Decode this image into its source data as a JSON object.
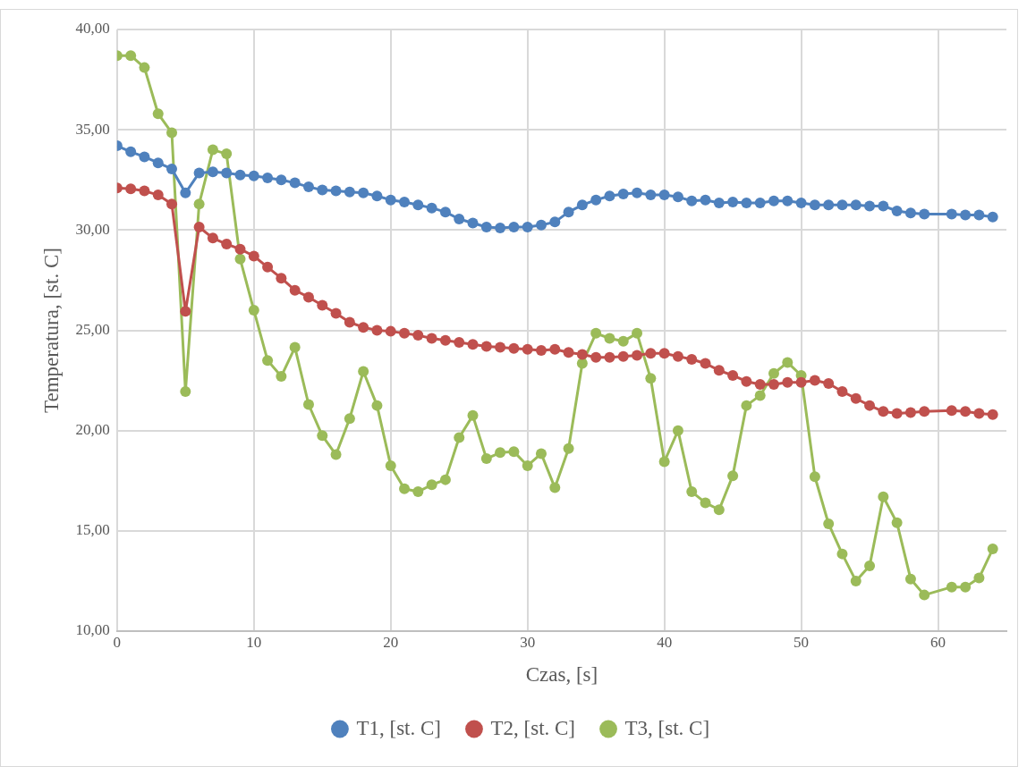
{
  "chart_data": {
    "type": "line",
    "xlabel": "Czas, [s]",
    "ylabel": "Temperatura, [st. C]",
    "x": [
      0,
      1,
      2,
      3,
      4,
      5,
      6,
      7,
      8,
      9,
      10,
      11,
      12,
      13,
      14,
      15,
      16,
      17,
      18,
      19,
      20,
      21,
      22,
      23,
      24,
      25,
      26,
      27,
      28,
      29,
      30,
      31,
      32,
      33,
      34,
      35,
      36,
      37,
      38,
      39,
      40,
      41,
      42,
      43,
      44,
      45,
      46,
      47,
      48,
      49,
      50,
      51,
      52,
      53,
      54,
      55,
      56,
      57,
      58,
      59,
      61,
      62,
      63,
      64
    ],
    "series": [
      {
        "name": "T1, [st. C]",
        "color": "#4f81bd",
        "values": [
          34.2,
          33.9,
          33.65,
          33.35,
          33.05,
          31.85,
          32.85,
          32.9,
          32.85,
          32.75,
          32.7,
          32.6,
          32.5,
          32.35,
          32.15,
          32.0,
          31.95,
          31.9,
          31.85,
          31.7,
          31.5,
          31.4,
          31.25,
          31.1,
          30.9,
          30.55,
          30.35,
          30.15,
          30.1,
          30.15,
          30.15,
          30.25,
          30.4,
          30.9,
          31.25,
          31.5,
          31.7,
          31.8,
          31.85,
          31.75,
          31.75,
          31.65,
          31.45,
          31.5,
          31.35,
          31.4,
          31.35,
          31.35,
          31.45,
          31.45,
          31.35,
          31.25,
          31.25,
          31.25,
          31.25,
          31.2,
          31.2,
          30.95,
          30.85,
          30.8,
          30.8,
          30.75,
          30.75,
          30.65
        ]
      },
      {
        "name": "T2, [st. C]",
        "color": "#c0504d",
        "values": [
          32.1,
          32.05,
          31.95,
          31.75,
          31.3,
          25.95,
          30.15,
          29.6,
          29.3,
          29.05,
          28.7,
          28.15,
          27.6,
          27.0,
          26.65,
          26.25,
          25.85,
          25.4,
          25.15,
          25.0,
          24.95,
          24.85,
          24.75,
          24.6,
          24.5,
          24.4,
          24.3,
          24.2,
          24.15,
          24.1,
          24.05,
          24.0,
          24.05,
          23.9,
          23.8,
          23.65,
          23.65,
          23.7,
          23.75,
          23.85,
          23.85,
          23.7,
          23.55,
          23.35,
          23.0,
          22.75,
          22.45,
          22.3,
          22.3,
          22.4,
          22.4,
          22.5,
          22.35,
          21.95,
          21.6,
          21.25,
          20.95,
          20.85,
          20.9,
          20.95,
          21.0,
          20.95,
          20.85,
          20.8
        ]
      },
      {
        "name": "T3, [st. C]",
        "color": "#9bbb59",
        "values": [
          38.7,
          38.7,
          38.1,
          35.8,
          34.85,
          21.95,
          31.3,
          34.0,
          33.8,
          28.55,
          26.0,
          23.5,
          22.7,
          24.15,
          21.3,
          19.75,
          18.8,
          20.6,
          22.95,
          21.25,
          18.25,
          17.1,
          16.95,
          17.3,
          17.55,
          19.65,
          20.75,
          18.6,
          18.9,
          18.95,
          18.25,
          18.85,
          17.15,
          19.1,
          23.35,
          24.85,
          24.6,
          24.45,
          24.85,
          22.6,
          18.45,
          20.0,
          16.95,
          16.4,
          16.05,
          17.75,
          21.25,
          21.75,
          22.85,
          23.4,
          22.75,
          17.7,
          15.35,
          13.85,
          12.5,
          13.25,
          16.7,
          15.4,
          12.6,
          11.8,
          12.2,
          12.2,
          12.65,
          14.1
        ]
      }
    ],
    "xlim": [
      0,
      65
    ],
    "xticks": [
      0,
      10,
      20,
      30,
      40,
      50,
      60
    ],
    "ylim": [
      10,
      40
    ],
    "yticks": [
      {
        "value": 10,
        "label": "10,00"
      },
      {
        "value": 15,
        "label": "15,00"
      },
      {
        "value": 20,
        "label": "20,00"
      },
      {
        "value": 25,
        "label": "25,00"
      },
      {
        "value": 30,
        "label": "30,00"
      },
      {
        "value": 35,
        "label": "35,00"
      },
      {
        "value": 40,
        "label": "40,00"
      }
    ],
    "grid": true,
    "legend": "bottom",
    "marker": "circle",
    "line_style": "solid"
  }
}
